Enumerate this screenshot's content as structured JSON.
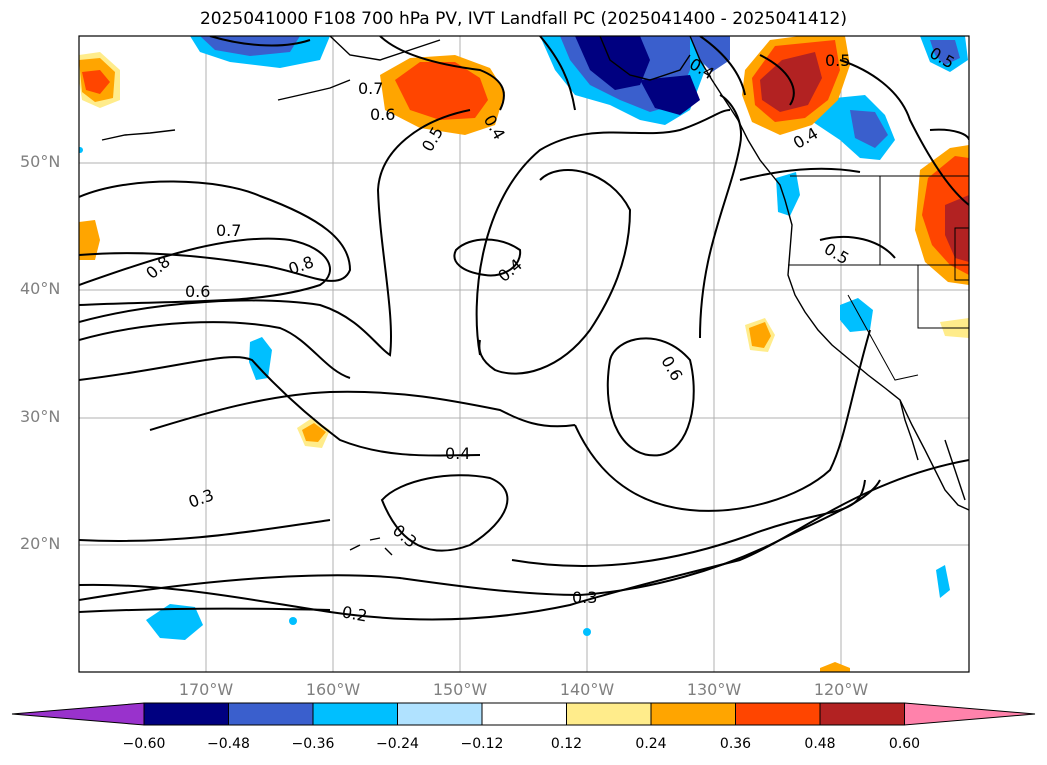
{
  "title": "2025041000 F108 700 hPa PV, IVT Landfall PC (2025041400 - 2025041412)",
  "latitude_labels": [
    "50°N",
    "40°N",
    "30°N",
    "20°N"
  ],
  "longitude_labels": [
    "170°W",
    "160°W",
    "150°W",
    "140°W",
    "130°W",
    "120°W"
  ],
  "contour_labels": [
    "0.7",
    "0.6",
    "0.5",
    "0.4",
    "0.4",
    "0.5",
    "0.5",
    "0.4",
    "0.7",
    "0.8",
    "0.8",
    "0.6",
    "0.4",
    "0.5",
    "0.6",
    "0.4",
    "0.3",
    "0.3",
    "0.3",
    "0.2"
  ],
  "colorbar": {
    "ticks": [
      "−0.60",
      "−0.48",
      "−0.36",
      "−0.24",
      "−0.12",
      "0.12",
      "0.24",
      "0.36",
      "0.48",
      "0.60"
    ],
    "colors": [
      "#9932cc",
      "#000080",
      "#3a5fcd",
      "#00bfff",
      "#b0e2ff",
      "#ffffff",
      "#ffec8b",
      "#ffa500",
      "#ff4500",
      "#b22222",
      "#ff82ab"
    ]
  }
}
